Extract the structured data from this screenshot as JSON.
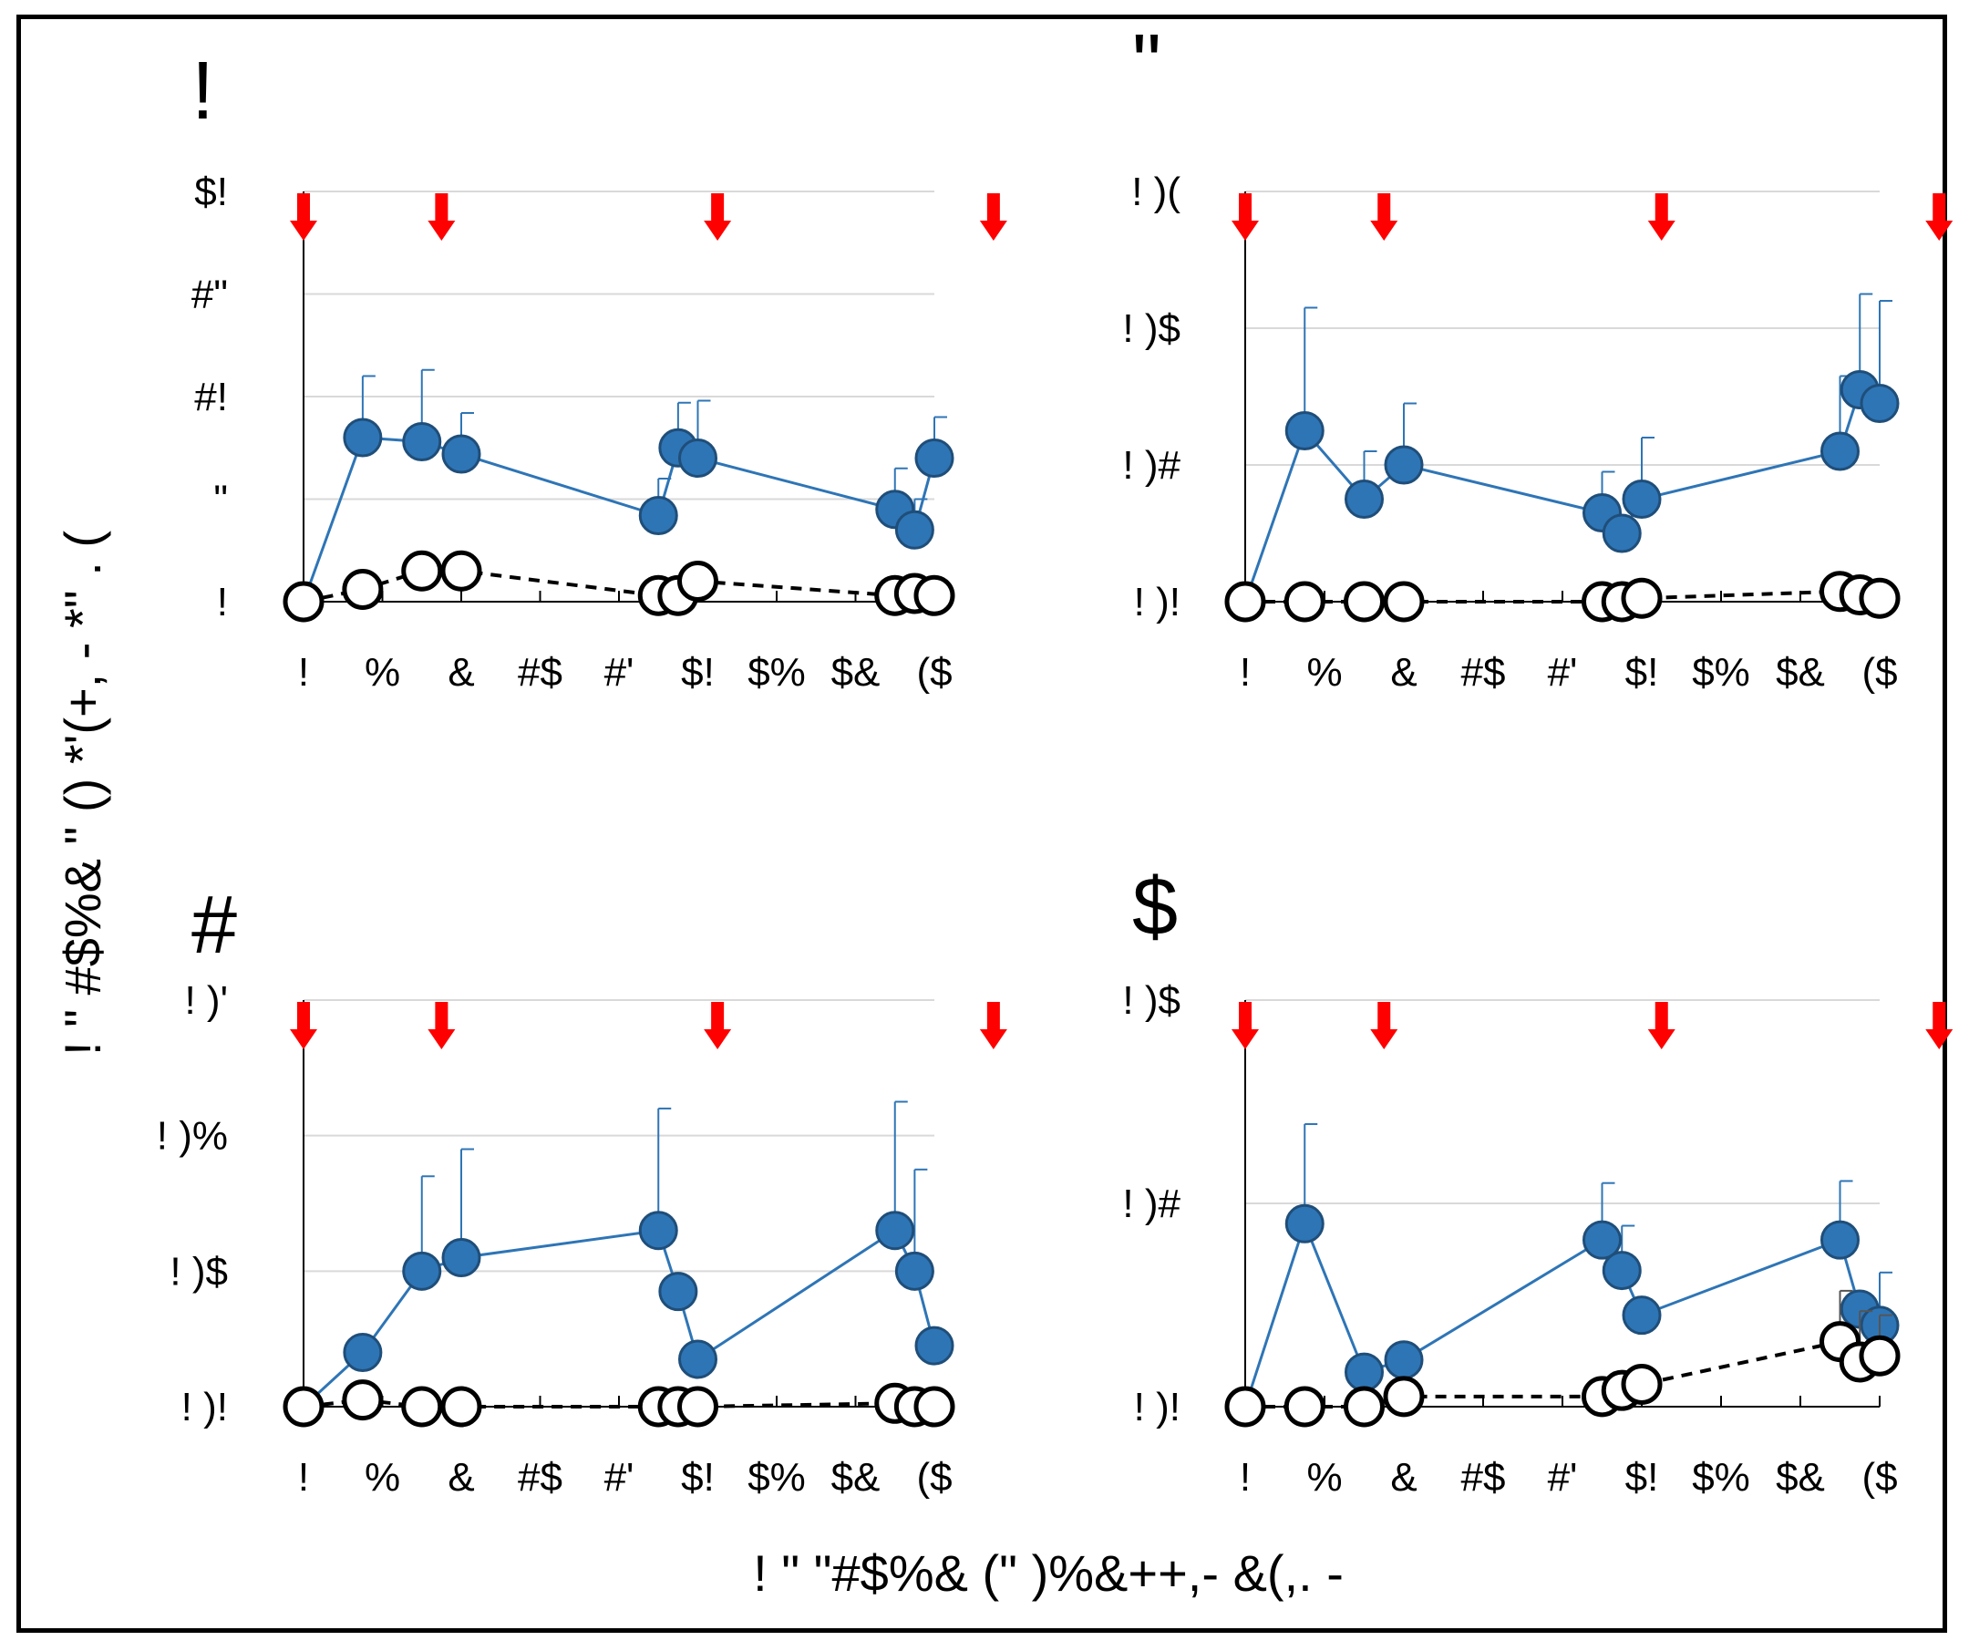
{
  "figure": {
    "ylabel": "! \" #$%& \" () *'(+, - *\" . (",
    "xlabel": "! \" \"#$%& (\" )%&++,- &(,. -"
  },
  "colors": {
    "filled": "#2e75b6",
    "filled_edge": "#1f4e79",
    "open_edge": "#000000",
    "arrow": "#ff0000",
    "grid": "#d9d9d9"
  },
  "chart_data": [
    {
      "type": "line",
      "panel_label": "!",
      "x_tick_labels": [
        "!",
        "%",
        "&",
        "#$",
        "#'",
        "$!",
        "$%",
        "$&",
        "($"
      ],
      "x_ticks": [
        0,
        4,
        8,
        12,
        16,
        20,
        24,
        28,
        32
      ],
      "xlim": [
        0,
        32
      ],
      "y_tick_labels": [
        "!",
        "\"",
        "#!",
        "#\"",
        "$!"
      ],
      "ylim": [
        0,
        20
      ],
      "y_ticks": [
        0,
        5,
        10,
        15,
        20
      ],
      "grid": true,
      "arrows_x": [
        0,
        7,
        21,
        35
      ],
      "series": [
        {
          "style": "filled-solid",
          "x": [
            0,
            3,
            6,
            8,
            18,
            19,
            20,
            30,
            31,
            32
          ],
          "y": [
            0,
            8,
            7.8,
            7.2,
            4.2,
            7.5,
            7,
            4.5,
            3.5,
            7
          ],
          "err": [
            0,
            3,
            3.5,
            2,
            1.8,
            2.2,
            2.8,
            2,
            1.5,
            2
          ]
        },
        {
          "style": "open-dashed",
          "x": [
            0,
            3,
            6,
            8,
            18,
            19,
            20,
            30,
            31,
            32
          ],
          "y": [
            0,
            0.6,
            1.5,
            1.5,
            0.3,
            0.3,
            1,
            0.3,
            0.4,
            0.3
          ],
          "err": [
            0,
            0,
            0,
            0.6,
            0,
            0,
            0,
            0,
            0,
            0
          ]
        }
      ]
    },
    {
      "type": "line",
      "panel_label": "\"",
      "x_tick_labels": [
        "!",
        "%",
        "&",
        "#$",
        "#'",
        "$!",
        "$%",
        "$&",
        "($"
      ],
      "x_ticks": [
        0,
        4,
        8,
        12,
        16,
        20,
        24,
        28,
        32
      ],
      "xlim": [
        0,
        32
      ],
      "y_tick_labels": [
        "! )!",
        "! )#",
        "! )$",
        "! )("
      ],
      "ylim": [
        0,
        0.6
      ],
      "y_ticks": [
        0,
        0.2,
        0.4,
        0.6
      ],
      "grid": true,
      "arrows_x": [
        0,
        7,
        21,
        35
      ],
      "series": [
        {
          "style": "filled-solid",
          "x": [
            0,
            3,
            6,
            8,
            18,
            19,
            20,
            30,
            31,
            32
          ],
          "y": [
            0,
            0.25,
            0.15,
            0.2,
            0.13,
            0.1,
            0.15,
            0.22,
            0.31,
            0.29
          ],
          "err": [
            0,
            0.18,
            0.07,
            0.09,
            0.06,
            0,
            0.09,
            0.11,
            0.14,
            0.15
          ]
        },
        {
          "style": "open-dashed",
          "x": [
            0,
            3,
            6,
            8,
            18,
            19,
            20,
            30,
            31,
            32
          ],
          "y": [
            0,
            0,
            0,
            0,
            0,
            0,
            0.005,
            0.015,
            0.01,
            0.005
          ],
          "err": [
            0,
            0,
            0,
            0,
            0,
            0,
            0,
            0,
            0,
            0
          ]
        }
      ]
    },
    {
      "type": "line",
      "panel_label": "#",
      "x_tick_labels": [
        "!",
        "%",
        "&",
        "#$",
        "#'",
        "$!",
        "$%",
        "$&",
        "($"
      ],
      "x_ticks": [
        0,
        4,
        8,
        12,
        16,
        20,
        24,
        28,
        32
      ],
      "xlim": [
        0,
        32
      ],
      "y_tick_labels": [
        "! )!",
        "! )$",
        "! )%",
        "! )'"
      ],
      "ylim": [
        0,
        0.6
      ],
      "y_ticks": [
        0,
        0.2,
        0.4,
        0.6
      ],
      "grid": true,
      "arrows_x": [
        0,
        7,
        21,
        35
      ],
      "series": [
        {
          "style": "filled-solid",
          "x": [
            0,
            3,
            6,
            8,
            18,
            19,
            20,
            30,
            31,
            32
          ],
          "y": [
            0,
            0.08,
            0.2,
            0.22,
            0.26,
            0.17,
            0.07,
            0.26,
            0.2,
            0.09
          ],
          "err": [
            0,
            0,
            0.14,
            0.16,
            0.18,
            0,
            0,
            0.19,
            0.15,
            0
          ]
        },
        {
          "style": "open-dashed",
          "x": [
            0,
            3,
            6,
            8,
            18,
            19,
            20,
            30,
            31,
            32
          ],
          "y": [
            0,
            0.01,
            0,
            0,
            0,
            0,
            0,
            0.005,
            0,
            0
          ],
          "err": [
            0,
            0,
            0,
            0,
            0,
            0,
            0,
            0,
            0,
            0
          ]
        }
      ]
    },
    {
      "type": "line",
      "panel_label": "$",
      "x_tick_labels": [
        "!",
        "%",
        "&",
        "#$",
        "#'",
        "$!",
        "$%",
        "$&",
        "($"
      ],
      "x_ticks": [
        0,
        4,
        8,
        12,
        16,
        20,
        24,
        28,
        32
      ],
      "xlim": [
        0,
        32
      ],
      "y_tick_labels": [
        "! )!",
        "! )#",
        "! )$"
      ],
      "ylim": [
        0,
        0.2
      ],
      "y_ticks": [
        0,
        0.1,
        0.2
      ],
      "grid": true,
      "arrows_x": [
        0,
        7,
        21,
        35
      ],
      "series": [
        {
          "style": "filled-solid",
          "x": [
            0,
            3,
            6,
            8,
            18,
            19,
            20,
            30,
            31,
            32
          ],
          "y": [
            0,
            0.09,
            0.017,
            0.023,
            0.082,
            0.067,
            0.045,
            0.082,
            0.048,
            0.04
          ],
          "err": [
            0,
            0.049,
            0,
            0,
            0.028,
            0.022,
            0,
            0.029,
            0,
            0.026
          ]
        },
        {
          "style": "open-dashed",
          "x": [
            0,
            3,
            6,
            8,
            18,
            19,
            20,
            30,
            31,
            32
          ],
          "y": [
            0,
            0,
            0,
            0.005,
            0.005,
            0.008,
            0.011,
            0.032,
            0.022,
            0.025
          ],
          "err": [
            0,
            0,
            0,
            0,
            0,
            0,
            0,
            0.025,
            0.025,
            0.02
          ]
        }
      ]
    }
  ]
}
